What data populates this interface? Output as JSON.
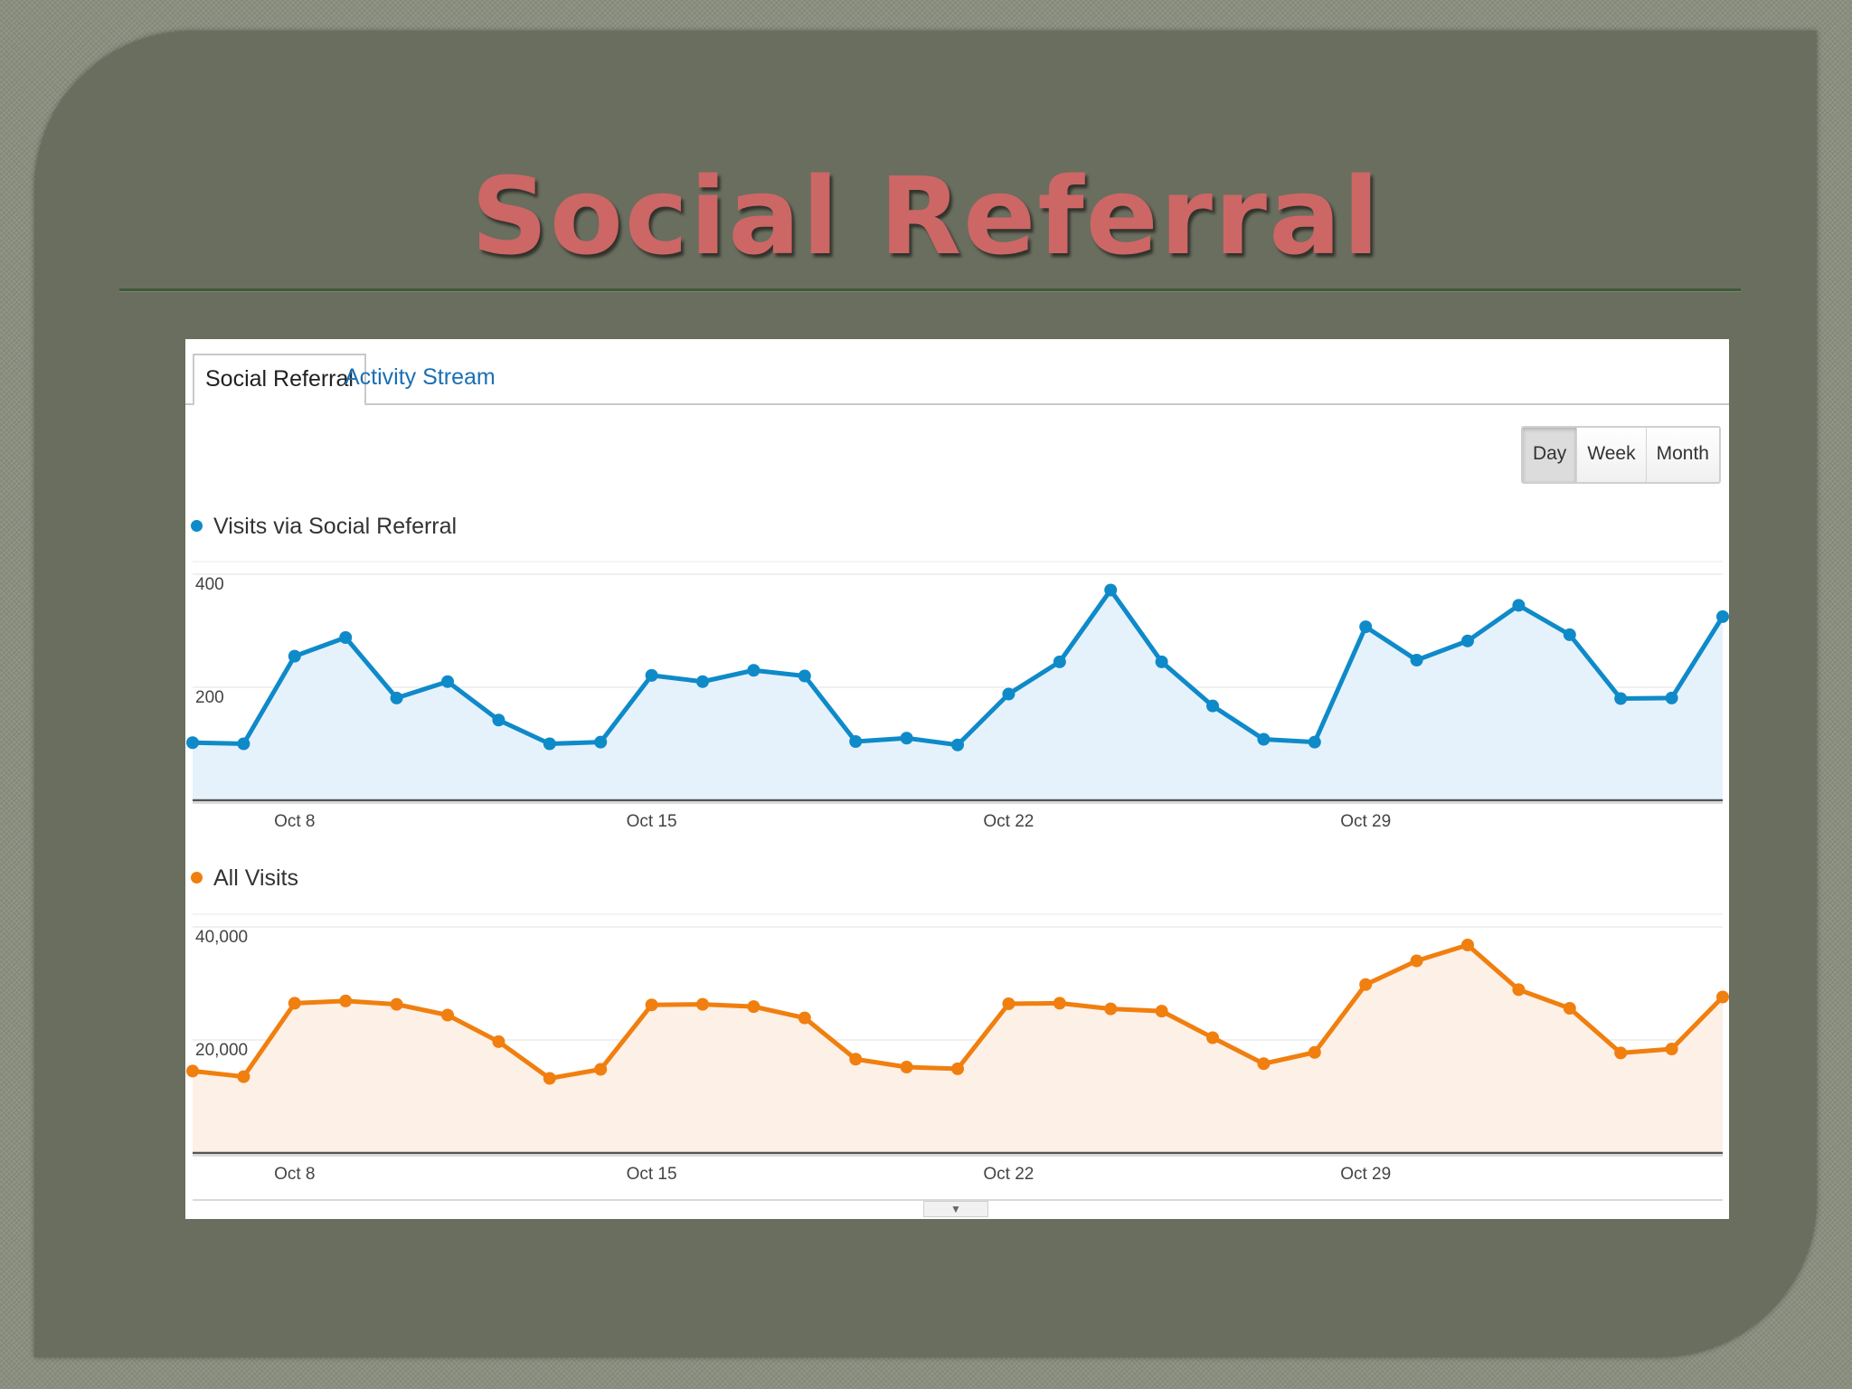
{
  "slide": {
    "title": "Social Referral"
  },
  "tabs": [
    {
      "label": "Social Referral",
      "active": true
    },
    {
      "label": "Activity Stream",
      "active": false
    }
  ],
  "range_buttons": [
    {
      "label": "Day",
      "active": true
    },
    {
      "label": "Week",
      "active": false
    },
    {
      "label": "Month",
      "active": false
    }
  ],
  "icons": {
    "collapse": "chevron-down-icon"
  },
  "chart_data": [
    {
      "type": "area",
      "series": [
        {
          "name": "Visits via Social Referral",
          "color": "#0f8ac9",
          "fill": "#e6f2fb",
          "values": [
            102,
            100,
            255,
            288,
            181,
            210,
            142,
            100,
            103,
            221,
            210,
            230,
            220,
            104,
            110,
            98,
            188,
            245,
            372,
            245,
            167,
            108,
            103,
            307,
            248,
            282,
            345,
            293,
            180,
            181,
            325
          ]
        }
      ],
      "x": [
        "Oct 6",
        "Oct 7",
        "Oct 8",
        "Oct 9",
        "Oct 10",
        "Oct 11",
        "Oct 12",
        "Oct 13",
        "Oct 14",
        "Oct 15",
        "Oct 16",
        "Oct 17",
        "Oct 18",
        "Oct 19",
        "Oct 20",
        "Oct 21",
        "Oct 22",
        "Oct 23",
        "Oct 24",
        "Oct 25",
        "Oct 26",
        "Oct 27",
        "Oct 28",
        "Oct 29",
        "Oct 30",
        "Oct 31",
        "Nov 1",
        "Nov 2",
        "Nov 3",
        "Nov 4",
        "Nov 5"
      ],
      "xticks": [
        "Oct 8",
        "Oct 15",
        "Oct 22",
        "Oct 29"
      ],
      "yticks": [
        "400",
        "200"
      ],
      "ylim": [
        0,
        400
      ]
    },
    {
      "type": "area",
      "series": [
        {
          "name": "All Visits",
          "color": "#f07f0f",
          "fill": "#fdf0e6",
          "values": [
            14500,
            13500,
            26500,
            26900,
            26300,
            24400,
            19700,
            13200,
            14800,
            26200,
            26300,
            25900,
            23900,
            16600,
            15200,
            14900,
            26400,
            26500,
            25500,
            25100,
            20400,
            15800,
            17800,
            29800,
            34000,
            36800,
            28900,
            25600,
            17700,
            18400,
            27600
          ]
        }
      ],
      "x": [
        "Oct 6",
        "Oct 7",
        "Oct 8",
        "Oct 9",
        "Oct 10",
        "Oct 11",
        "Oct 12",
        "Oct 13",
        "Oct 14",
        "Oct 15",
        "Oct 16",
        "Oct 17",
        "Oct 18",
        "Oct 19",
        "Oct 20",
        "Oct 21",
        "Oct 22",
        "Oct 23",
        "Oct 24",
        "Oct 25",
        "Oct 26",
        "Oct 27",
        "Oct 28",
        "Oct 29",
        "Oct 30",
        "Oct 31",
        "Nov 1",
        "Nov 2",
        "Nov 3",
        "Nov 4",
        "Nov 5"
      ],
      "xticks": [
        "Oct 8",
        "Oct 15",
        "Oct 22",
        "Oct 29"
      ],
      "yticks": [
        "40,000",
        "20,000"
      ],
      "ylim": [
        0,
        40000
      ]
    }
  ]
}
